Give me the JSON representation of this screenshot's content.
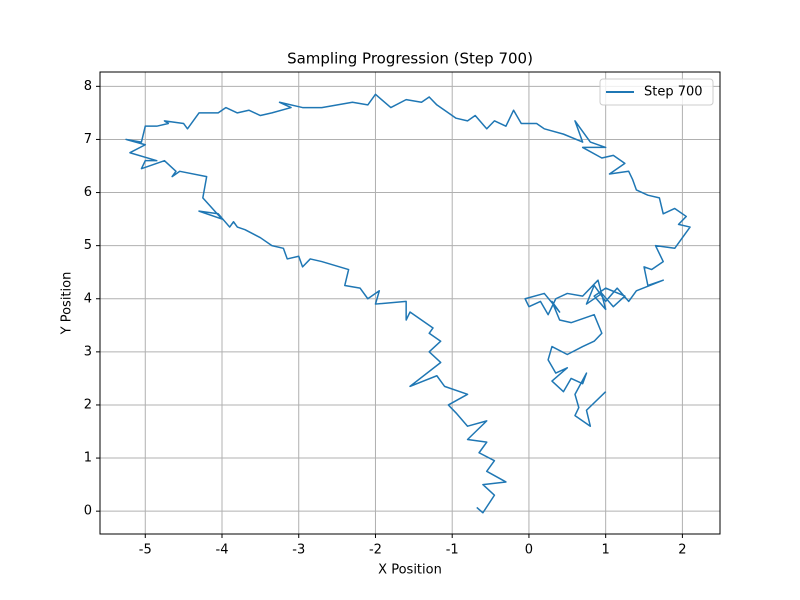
{
  "chart_data": {
    "type": "line",
    "title": "Sampling Progression (Step 700)",
    "x_label": "X Position",
    "y_label": "Y Position",
    "xlim": [
      -5.59,
      2.49
    ],
    "ylim": [
      -0.43,
      8.27
    ],
    "xticks": [
      -5,
      -4,
      -3,
      -2,
      -1,
      0,
      1,
      2
    ],
    "yticks": [
      0,
      1,
      2,
      3,
      4,
      5,
      6,
      7,
      8
    ],
    "grid": true,
    "legend": "upper right",
    "series": [
      {
        "name": "Step 700",
        "color": "#1f77b4",
        "x": [
          -0.68,
          -0.6,
          -0.45,
          -0.6,
          -0.3,
          -0.55,
          -0.45,
          -0.65,
          -0.55,
          -0.8,
          -0.55,
          -0.8,
          -0.95,
          -1.05,
          -0.8,
          -1.1,
          -1.2,
          -1.55,
          -1.15,
          -1.3,
          -1.15,
          -1.3,
          -1.25,
          -1.4,
          -1.55,
          -1.6,
          -1.6,
          -2.0,
          -1.95,
          -2.1,
          -2.2,
          -2.4,
          -2.35,
          -2.7,
          -2.85,
          -2.95,
          -3.0,
          -3.15,
          -3.2,
          -3.35,
          -3.5,
          -3.7,
          -3.8,
          -3.85,
          -3.9,
          -4.05,
          -4.3,
          -4.0,
          -4.25,
          -4.2,
          -4.55,
          -4.65,
          -4.6,
          -4.75,
          -5.05,
          -5.0,
          -4.85,
          -5.2,
          -5.0,
          -5.25,
          -5.05,
          -5.0,
          -4.85,
          -4.7,
          -4.75,
          -4.5,
          -4.45,
          -4.3,
          -4.05,
          -3.95,
          -3.8,
          -3.65,
          -3.5,
          -3.35,
          -3.1,
          -3.25,
          -2.95,
          -2.7,
          -2.3,
          -2.1,
          -2.0,
          -1.8,
          -1.6,
          -1.4,
          -1.3,
          -1.2,
          -1.05,
          -0.95,
          -0.8,
          -0.7,
          -0.55,
          -0.45,
          -0.3,
          -0.2,
          -0.1,
          0.1,
          0.2,
          0.45,
          0.7,
          0.6,
          0.8,
          1.0,
          0.7,
          0.95,
          1.1,
          1.25,
          1.05,
          1.3,
          1.35,
          1.4,
          1.55,
          1.7,
          1.75,
          1.9,
          2.05,
          1.95,
          2.1,
          2.0,
          1.9,
          1.65,
          1.75,
          1.6,
          1.5,
          1.55,
          1.75,
          1.4,
          1.3,
          1.15,
          1.0,
          0.85,
          0.75,
          0.95,
          1.1,
          1.25,
          1.0,
          0.85,
          1.0,
          0.9,
          0.7,
          0.5,
          0.35,
          0.25,
          0.15,
          0.0,
          -0.05,
          0.2,
          0.4,
          0.3,
          0.4,
          0.55,
          0.85,
          0.95,
          0.85,
          0.7,
          0.5,
          0.3,
          0.25,
          0.35,
          0.5,
          0.3,
          0.45,
          0.55,
          0.7,
          0.75,
          0.6,
          0.65,
          0.6,
          0.8,
          0.75,
          1.0
        ],
        "values": [
          0.07,
          -0.03,
          0.3,
          0.5,
          0.55,
          0.75,
          0.95,
          1.1,
          1.3,
          1.35,
          1.7,
          1.6,
          1.85,
          2.0,
          2.2,
          2.35,
          2.55,
          2.35,
          2.8,
          3.0,
          3.2,
          3.35,
          3.45,
          3.6,
          3.75,
          3.6,
          3.95,
          3.9,
          4.15,
          4.0,
          4.2,
          4.25,
          4.55,
          4.7,
          4.75,
          4.6,
          4.8,
          4.75,
          4.95,
          5.0,
          5.15,
          5.3,
          5.35,
          5.45,
          5.35,
          5.6,
          5.65,
          5.5,
          5.9,
          6.3,
          6.4,
          6.3,
          6.4,
          6.6,
          6.45,
          6.6,
          6.6,
          6.75,
          6.9,
          7.0,
          6.95,
          7.25,
          7.25,
          7.3,
          7.35,
          7.3,
          7.2,
          7.5,
          7.5,
          7.6,
          7.5,
          7.55,
          7.45,
          7.5,
          7.6,
          7.7,
          7.6,
          7.6,
          7.7,
          7.65,
          7.85,
          7.6,
          7.75,
          7.7,
          7.8,
          7.65,
          7.5,
          7.4,
          7.35,
          7.45,
          7.2,
          7.35,
          7.25,
          7.55,
          7.3,
          7.3,
          7.2,
          7.1,
          6.95,
          7.35,
          6.95,
          6.85,
          6.85,
          6.65,
          6.7,
          6.55,
          6.35,
          6.4,
          6.25,
          6.05,
          5.95,
          5.9,
          5.6,
          5.7,
          5.55,
          5.4,
          5.35,
          5.15,
          4.95,
          5.0,
          4.7,
          4.55,
          4.6,
          4.25,
          4.35,
          4.15,
          3.95,
          4.2,
          3.95,
          4.25,
          3.9,
          4.1,
          3.85,
          4.05,
          4.2,
          4.05,
          3.8,
          4.35,
          4.05,
          4.1,
          4.0,
          3.7,
          3.95,
          3.85,
          4.0,
          4.1,
          3.75,
          3.95,
          3.6,
          3.55,
          3.7,
          3.35,
          3.2,
          3.1,
          2.95,
          3.1,
          2.85,
          2.6,
          2.7,
          2.45,
          2.25,
          2.5,
          2.4,
          2.6,
          2.2,
          1.95,
          1.8,
          1.6,
          1.9,
          2.25
        ]
      }
    ]
  }
}
